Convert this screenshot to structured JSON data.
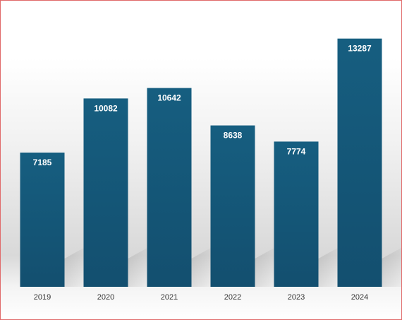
{
  "chart_data": {
    "type": "bar",
    "title": "",
    "xlabel": "",
    "ylabel": "",
    "categories": [
      "2019",
      "2020",
      "2021",
      "2022",
      "2023",
      "2024"
    ],
    "values": [
      7185,
      10082,
      10642,
      8638,
      7774,
      13287
    ],
    "data_labels": [
      "7185",
      "10082",
      "10642",
      "8638",
      "7774",
      "13287"
    ],
    "ylim": [
      0,
      13500
    ],
    "grid": false,
    "legend": "none",
    "bar_color_top": "#165e80",
    "bar_color_bottom": "#134f6f",
    "label_color": "#ffffff",
    "border_color": "#e06a6a"
  }
}
